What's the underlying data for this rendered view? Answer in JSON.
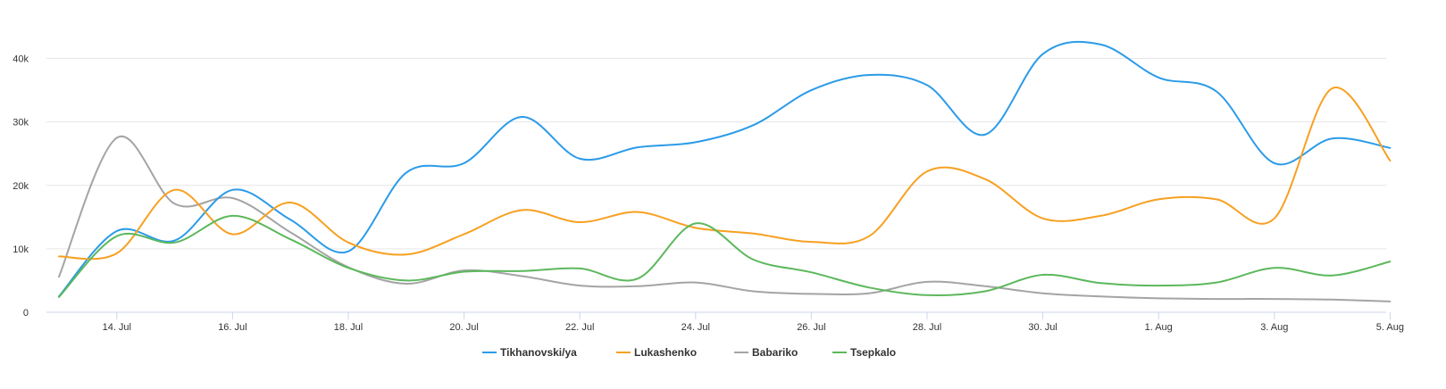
{
  "chart_data": {
    "type": "line",
    "x_start": "2020-07-13",
    "x": [
      "2020-07-13",
      "2020-07-14",
      "2020-07-15",
      "2020-07-16",
      "2020-07-17",
      "2020-07-18",
      "2020-07-19",
      "2020-07-20",
      "2020-07-21",
      "2020-07-22",
      "2020-07-23",
      "2020-07-24",
      "2020-07-25",
      "2020-07-26",
      "2020-07-27",
      "2020-07-28",
      "2020-07-29",
      "2020-07-30",
      "2020-07-31",
      "2020-08-01",
      "2020-08-02",
      "2020-08-03",
      "2020-08-04",
      "2020-08-05"
    ],
    "xticks": [
      "14. Jul",
      "16. Jul",
      "18. Jul",
      "20. Jul",
      "22. Jul",
      "24. Jul",
      "26. Jul",
      "28. Jul",
      "30. Jul",
      "1. Aug",
      "3. Aug",
      "5. Aug"
    ],
    "ylim": [
      0,
      45000
    ],
    "yticks": [
      {
        "value": 0,
        "label": "0"
      },
      {
        "value": 10000,
        "label": "10k"
      },
      {
        "value": 20000,
        "label": "20k"
      },
      {
        "value": 30000,
        "label": "30k"
      },
      {
        "value": 40000,
        "label": "40k"
      }
    ],
    "grid": true,
    "legend_position": "bottom-center",
    "series": [
      {
        "name": "Tikhanovski/ya",
        "color": "#2b9be8",
        "values": [
          2500,
          12800,
          11300,
          19300,
          14600,
          9600,
          22000,
          23500,
          30800,
          24200,
          26000,
          26800,
          29500,
          35000,
          37400,
          35800,
          28000,
          40700,
          42200,
          37000,
          34800,
          23500,
          27400,
          25900
        ]
      },
      {
        "name": "Lukashenko",
        "color": "#f7a021",
        "values": [
          8800,
          9300,
          19300,
          12300,
          17300,
          11000,
          9100,
          12300,
          16100,
          14200,
          15800,
          13300,
          12400,
          11100,
          12000,
          22200,
          21000,
          14800,
          15200,
          17800,
          17800,
          14800,
          35300,
          23900
        ]
      },
      {
        "name": "Babariko",
        "color": "#a4a4a4",
        "values": [
          5600,
          27500,
          17100,
          18000,
          12600,
          7100,
          4500,
          6600,
          5700,
          4200,
          4100,
          4700,
          3300,
          2900,
          3000,
          4800,
          4100,
          3000,
          2500,
          2200,
          2100,
          2100,
          2000,
          1700
        ]
      },
      {
        "name": "Tsepkalo",
        "color": "#5cb85c",
        "values": [
          2400,
          12000,
          11000,
          15200,
          11500,
          7000,
          5000,
          6400,
          6500,
          6900,
          5300,
          14000,
          8300,
          6300,
          3900,
          2700,
          3300,
          5900,
          4600,
          4200,
          4700,
          7000,
          5800,
          8000
        ]
      }
    ]
  }
}
